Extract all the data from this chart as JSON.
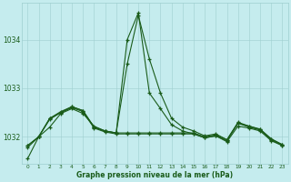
{
  "xlabel": "Graphe pression niveau de la mer (hPa)",
  "background_color": "#c5ecee",
  "grid_color": "#9ecfcf",
  "line_color": "#1a5c1a",
  "ylim": [
    1031.45,
    1034.75
  ],
  "yticks": [
    1032,
    1033,
    1034
  ],
  "series": [
    [
      1031.55,
      1032.0,
      1032.2,
      1032.45,
      1032.55,
      1032.45,
      1032.2,
      1032.1,
      1032.05,
      1034.0,
      1034.55,
      1032.85,
      1032.55,
      1032.2,
      1032.1,
      1032.05,
      1031.95,
      1032.0,
      1031.9,
      1032.2,
      1032.15,
      1032.1,
      1031.9,
      1031.82
    ],
    [
      1031.75,
      1032.0,
      1032.35,
      1032.5,
      1032.58,
      1032.52,
      1032.2,
      1032.12,
      1032.08,
      1033.45,
      1034.5,
      1033.5,
      1032.75,
      1032.3,
      1032.18,
      1032.12,
      1032.02,
      1032.05,
      1031.92,
      1032.25,
      1032.18,
      1032.12,
      1031.92,
      1031.82
    ],
    [
      1031.82,
      1032.0,
      1032.4,
      1032.52,
      1032.62,
      1032.56,
      1032.22,
      1032.14,
      1032.1,
      1032.1,
      1032.1,
      1032.1,
      1032.1,
      1032.1,
      1032.1,
      1032.1,
      1032.0,
      1032.02,
      1031.92,
      1032.28,
      1032.22,
      1032.16,
      1031.96,
      1031.83
    ],
    [
      1031.82,
      1032.0,
      1032.38,
      1032.5,
      1032.6,
      1032.54,
      1032.2,
      1032.12,
      1032.08,
      1032.08,
      1032.08,
      1032.08,
      1032.08,
      1032.08,
      1032.08,
      1032.08,
      1032.0,
      1032.02,
      1031.92,
      1032.3,
      1032.22,
      1032.14,
      1031.94,
      1031.82
    ]
  ]
}
